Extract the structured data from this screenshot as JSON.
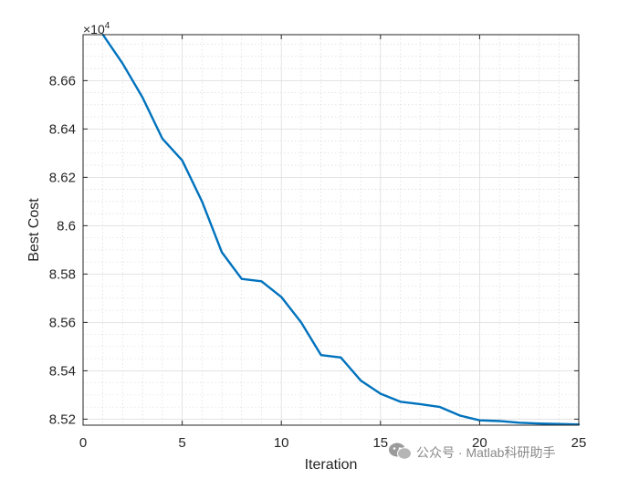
{
  "chart_data": {
    "type": "line",
    "xlabel": "Iteration",
    "ylabel": "Best Cost",
    "y_exponent_label": "×10",
    "y_exponent_power": "4",
    "xlim": [
      0,
      25
    ],
    "ylim": [
      85175,
      86790
    ],
    "xticks": [
      0,
      5,
      10,
      15,
      20,
      25
    ],
    "xtick_labels": [
      "0",
      "5",
      "10",
      "15",
      "20",
      "25"
    ],
    "yticks": [
      85200,
      85400,
      85600,
      85800,
      86000,
      86200,
      86400,
      86600
    ],
    "ytick_labels": [
      "8.52",
      "8.54",
      "8.56",
      "8.58",
      "8.6",
      "8.62",
      "8.64",
      "8.66"
    ],
    "grid": true,
    "minor_grid": true,
    "series": [
      {
        "color": "#0072BD",
        "x": [
          1,
          2,
          3,
          4,
          5,
          6,
          7,
          8,
          9,
          10,
          11,
          12,
          13,
          14,
          15,
          16,
          17,
          18,
          19,
          20,
          21,
          22,
          23,
          24,
          25
        ],
        "y": [
          86790,
          86670,
          86530,
          86360,
          86270,
          86100,
          85890,
          85780,
          85770,
          85705,
          85600,
          85465,
          85455,
          85360,
          85305,
          85272,
          85262,
          85250,
          85215,
          85195,
          85192,
          85185,
          85182,
          85180,
          85178
        ]
      }
    ]
  },
  "watermark": {
    "icon": "wechat-icon",
    "text": "公众号 · Matlab科研助手"
  }
}
